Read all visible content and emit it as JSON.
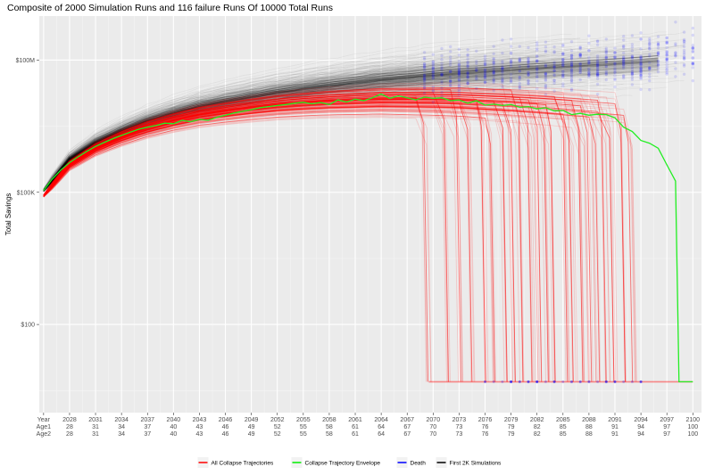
{
  "chart_data": {
    "type": "line",
    "title": "Composite of 2000 Simulation Runs and 116 failure Runs Of 10000 Total Runs",
    "ylabel": "Total Savings",
    "xlabel": "",
    "y_scale": "log",
    "ylim": [
      1,
      1000000000
    ],
    "xlim": [
      2024.5,
      2101
    ],
    "grid": true,
    "background": "#ebebeb",
    "y_ticks": [
      {
        "value": 100,
        "label": "$100"
      },
      {
        "value": 100000,
        "label": "$100K"
      },
      {
        "value": 100000000,
        "label": "$100M"
      }
    ],
    "x_row_labels": [
      "Year",
      "Age1",
      "Age2"
    ],
    "x_ticks": [
      {
        "year": "2028",
        "age1": "28",
        "age2": "28"
      },
      {
        "year": "2031",
        "age1": "31",
        "age2": "31"
      },
      {
        "year": "2034",
        "age1": "34",
        "age2": "34"
      },
      {
        "year": "2037",
        "age1": "37",
        "age2": "37"
      },
      {
        "year": "2040",
        "age1": "40",
        "age2": "40"
      },
      {
        "year": "2043",
        "age1": "43",
        "age2": "43"
      },
      {
        "year": "2046",
        "age1": "46",
        "age2": "46"
      },
      {
        "year": "2049",
        "age1": "49",
        "age2": "49"
      },
      {
        "year": "2052",
        "age1": "52",
        "age2": "52"
      },
      {
        "year": "2055",
        "age1": "55",
        "age2": "55"
      },
      {
        "year": "2058",
        "age1": "58",
        "age2": "58"
      },
      {
        "year": "2061",
        "age1": "61",
        "age2": "61"
      },
      {
        "year": "2064",
        "age1": "64",
        "age2": "64"
      },
      {
        "year": "2067",
        "age1": "67",
        "age2": "67"
      },
      {
        "year": "2070",
        "age1": "70",
        "age2": "70"
      },
      {
        "year": "2073",
        "age1": "73",
        "age2": "73"
      },
      {
        "year": "2076",
        "age1": "76",
        "age2": "76"
      },
      {
        "year": "2079",
        "age1": "79",
        "age2": "79"
      },
      {
        "year": "2082",
        "age1": "82",
        "age2": "82"
      },
      {
        "year": "2085",
        "age1": "85",
        "age2": "85"
      },
      {
        "year": "2088",
        "age1": "88",
        "age2": "88"
      },
      {
        "year": "2091",
        "age1": "91",
        "age2": "91"
      },
      {
        "year": "2094",
        "age1": "94",
        "age2": "94"
      },
      {
        "year": "2097",
        "age1": "97",
        "age2": "97"
      },
      {
        "year": "2100",
        "age1": "100",
        "age2": "100"
      }
    ],
    "legend": {
      "placement": "bottom",
      "entries": [
        {
          "label": "All Collapse Trajectories",
          "color": "#ff0000"
        },
        {
          "label": "Collapse Trajectory Envelope",
          "color": "#00ee00"
        },
        {
          "label": "Death",
          "color": "#0000ff"
        },
        {
          "label": "First 2K Simulations",
          "color": "#000000"
        }
      ]
    },
    "envelope_series": {
      "name": "Collapse Trajectory Envelope",
      "color": "#22ee22",
      "points": [
        [
          2025,
          110000
        ],
        [
          2026,
          200000
        ],
        [
          2027,
          320000
        ],
        [
          2028,
          470000
        ],
        [
          2029,
          640000
        ],
        [
          2030,
          850000
        ],
        [
          2031,
          1100000
        ],
        [
          2032,
          1350000
        ],
        [
          2033,
          1650000
        ],
        [
          2034,
          1950000
        ],
        [
          2035,
          2300000
        ],
        [
          2036,
          2700000
        ],
        [
          2037,
          3000000
        ],
        [
          2038,
          3300000
        ],
        [
          2039,
          3700000
        ],
        [
          2040,
          3600000
        ],
        [
          2041,
          4300000
        ],
        [
          2042,
          4000000
        ],
        [
          2043,
          4500000
        ],
        [
          2044,
          4300000
        ],
        [
          2045,
          5000000
        ],
        [
          2046,
          5600000
        ],
        [
          2047,
          6300000
        ],
        [
          2048,
          6900000
        ],
        [
          2049,
          7500000
        ],
        [
          2050,
          8300000
        ],
        [
          2051,
          8800000
        ],
        [
          2052,
          9300000
        ],
        [
          2053,
          9800000
        ],
        [
          2054,
          10500000
        ],
        [
          2055,
          11000000
        ],
        [
          2056,
          10200000
        ],
        [
          2057,
          10900000
        ],
        [
          2058,
          9800000
        ],
        [
          2059,
          12500000
        ],
        [
          2060,
          11200000
        ],
        [
          2061,
          13000000
        ],
        [
          2062,
          12000000
        ],
        [
          2063,
          14000000
        ],
        [
          2064,
          17000000
        ],
        [
          2065,
          13500000
        ],
        [
          2066,
          15500000
        ],
        [
          2067,
          14000000
        ],
        [
          2068,
          12500000
        ],
        [
          2069,
          14500000
        ],
        [
          2070,
          13500000
        ],
        [
          2071,
          14000000
        ],
        [
          2072,
          12000000
        ],
        [
          2073,
          12500000
        ],
        [
          2074,
          10500000
        ],
        [
          2075,
          12000000
        ],
        [
          2076,
          9500000
        ],
        [
          2077,
          10000000
        ],
        [
          2078,
          9300000
        ],
        [
          2079,
          9800000
        ],
        [
          2080,
          8500000
        ],
        [
          2081,
          8800000
        ],
        [
          2082,
          7800000
        ],
        [
          2083,
          8300000
        ],
        [
          2084,
          7000000
        ],
        [
          2085,
          7200000
        ],
        [
          2086,
          5800000
        ],
        [
          2087,
          6200000
        ],
        [
          2088,
          5600000
        ],
        [
          2089,
          5900000
        ],
        [
          2090,
          5800000
        ],
        [
          2091,
          4900000
        ],
        [
          2092,
          3000000
        ],
        [
          2093,
          2400000
        ],
        [
          2094,
          1500000
        ],
        [
          2095,
          1300000
        ],
        [
          2096,
          1000000
        ],
        [
          2097,
          420000
        ],
        [
          2098,
          180000
        ],
        [
          2098.4,
          5
        ],
        [
          2099,
          5
        ],
        [
          2100,
          5
        ]
      ]
    },
    "collapse_floor_value": 5,
    "collapse_floor_range": [
      2069.5,
      2100
    ],
    "collapse_drop_years": [
      2069.5,
      2071.8,
      2073.2,
      2074.6,
      2076.2,
      2077.1,
      2078.3,
      2079.4,
      2080.2,
      2081.6,
      2082.4,
      2083.2,
      2084.1,
      2085.5,
      2086.4,
      2087.3,
      2088.2,
      2089.1,
      2090.2,
      2091.1,
      2092.4,
      2093.3
    ],
    "central_series": {
      "name": "First 2K Simulations",
      "points": [
        [
          2025,
          110000
        ],
        [
          2028,
          550000
        ],
        [
          2031,
          1300000
        ],
        [
          2034,
          2400000
        ],
        [
          2037,
          4000000
        ],
        [
          2040,
          6000000
        ],
        [
          2043,
          8500000
        ],
        [
          2046,
          11000000
        ],
        [
          2049,
          14000000
        ],
        [
          2052,
          17500000
        ],
        [
          2055,
          21000000
        ],
        [
          2058,
          25000000
        ],
        [
          2061,
          29000000
        ],
        [
          2064,
          34000000
        ],
        [
          2067,
          38000000
        ],
        [
          2070,
          43000000
        ],
        [
          2073,
          48000000
        ],
        [
          2076,
          52000000
        ],
        [
          2079,
          57000000
        ],
        [
          2082,
          62000000
        ],
        [
          2085,
          67000000
        ],
        [
          2088,
          72000000
        ],
        [
          2091,
          78000000
        ],
        [
          2094,
          85000000
        ],
        [
          2097,
          95000000
        ],
        [
          2100,
          110000000
        ]
      ]
    }
  }
}
